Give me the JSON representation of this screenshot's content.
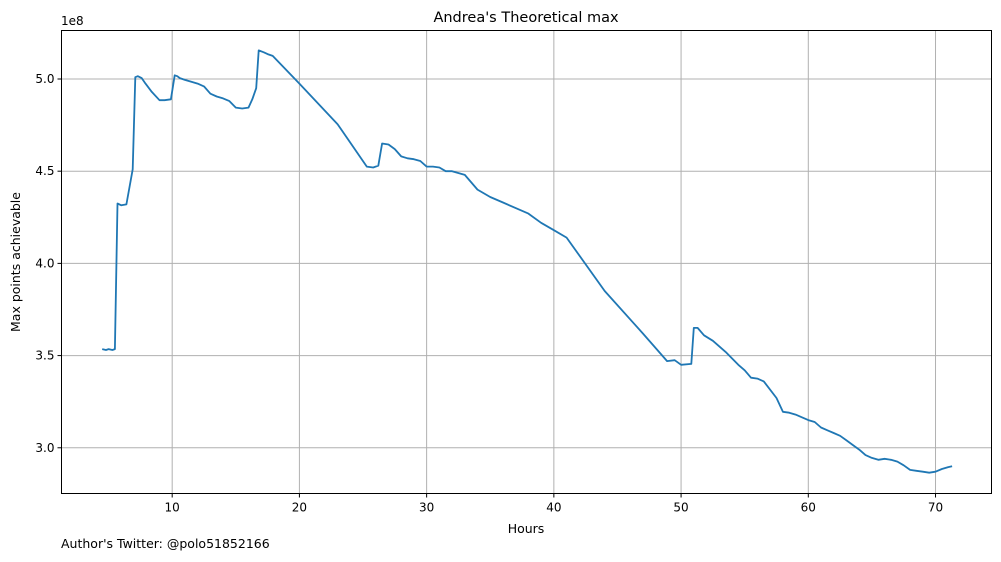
{
  "chart_data": {
    "type": "line",
    "title": "Andrea's Theoretical max",
    "xlabel": "Hours",
    "ylabel": "Max points achievable",
    "offset_label": "1e8",
    "xlim": [
      1.3,
      74.4
    ],
    "ylim": [
      2.752,
      5.263
    ],
    "xticks": [
      10,
      20,
      30,
      40,
      50,
      60,
      70
    ],
    "xtick_labels": [
      "10",
      "20",
      "30",
      "40",
      "50",
      "60",
      "70"
    ],
    "yticks": [
      3.0,
      3.5,
      4.0,
      4.5,
      5.0
    ],
    "ytick_labels": [
      "3.0",
      "3.5",
      "4.0",
      "4.5",
      "5.0"
    ],
    "grid": true,
    "series": [
      {
        "color": "#1f77b4",
        "x": [
          4.5,
          4.8,
          5.0,
          5.3,
          5.5,
          5.7,
          6.0,
          6.4,
          6.9,
          7.1,
          7.3,
          7.6,
          7.9,
          8.4,
          9.0,
          9.4,
          9.9,
          10.2,
          10.4,
          10.6,
          11.0,
          11.5,
          12.0,
          12.5,
          13.0,
          13.5,
          14.0,
          14.5,
          15.0,
          15.5,
          16.0,
          16.3,
          16.6,
          16.8,
          17.2,
          17.5,
          17.9,
          20.0,
          23.0,
          25.3,
          25.8,
          26.2,
          26.5,
          27.0,
          27.5,
          28.0,
          28.5,
          29.0,
          29.5,
          30.0,
          30.5,
          31.0,
          31.5,
          32.0,
          33.0,
          34.0,
          35.0,
          36.0,
          37.0,
          38.0,
          39.0,
          40.0,
          41.0,
          44.0,
          47.0,
          48.9,
          49.5,
          50.0,
          50.8,
          51.0,
          51.3,
          51.8,
          52.5,
          53.5,
          54.5,
          55.0,
          55.5,
          56.0,
          56.5,
          57.5,
          58.0,
          58.5,
          59.0,
          59.5,
          60.0,
          60.5,
          61.0,
          61.5,
          62.0,
          62.5,
          63.0,
          63.5,
          64.0,
          64.5,
          65.0,
          65.5,
          66.0,
          66.5,
          67.0,
          67.5,
          68.0,
          68.5,
          69.0,
          69.5,
          70.0,
          70.5,
          71.0,
          71.3
        ],
        "y": [
          3.535,
          3.53,
          3.535,
          3.53,
          3.535,
          4.325,
          4.315,
          4.32,
          4.51,
          5.01,
          5.015,
          5.005,
          4.975,
          4.93,
          4.885,
          4.885,
          4.89,
          5.02,
          5.015,
          5.005,
          4.995,
          4.985,
          4.975,
          4.96,
          4.92,
          4.905,
          4.895,
          4.88,
          4.845,
          4.84,
          4.845,
          4.89,
          4.95,
          5.155,
          5.145,
          5.135,
          5.125,
          4.975,
          4.755,
          4.525,
          4.52,
          4.53,
          4.65,
          4.645,
          4.62,
          4.58,
          4.57,
          4.565,
          4.555,
          4.525,
          4.525,
          4.52,
          4.5,
          4.5,
          4.48,
          4.4,
          4.36,
          4.33,
          4.3,
          4.27,
          4.22,
          4.18,
          4.14,
          3.85,
          3.62,
          3.47,
          3.475,
          3.45,
          3.455,
          3.65,
          3.65,
          3.61,
          3.58,
          3.52,
          3.45,
          3.42,
          3.38,
          3.375,
          3.36,
          3.27,
          3.195,
          3.19,
          3.18,
          3.165,
          3.15,
          3.14,
          3.11,
          3.095,
          3.08,
          3.065,
          3.04,
          3.015,
          2.99,
          2.96,
          2.945,
          2.935,
          2.94,
          2.935,
          2.925,
          2.905,
          2.88,
          2.875,
          2.87,
          2.865,
          2.87,
          2.885,
          2.895,
          2.9
        ]
      }
    ]
  },
  "footer": {
    "credit": "Author's Twitter: @polo51852166"
  }
}
